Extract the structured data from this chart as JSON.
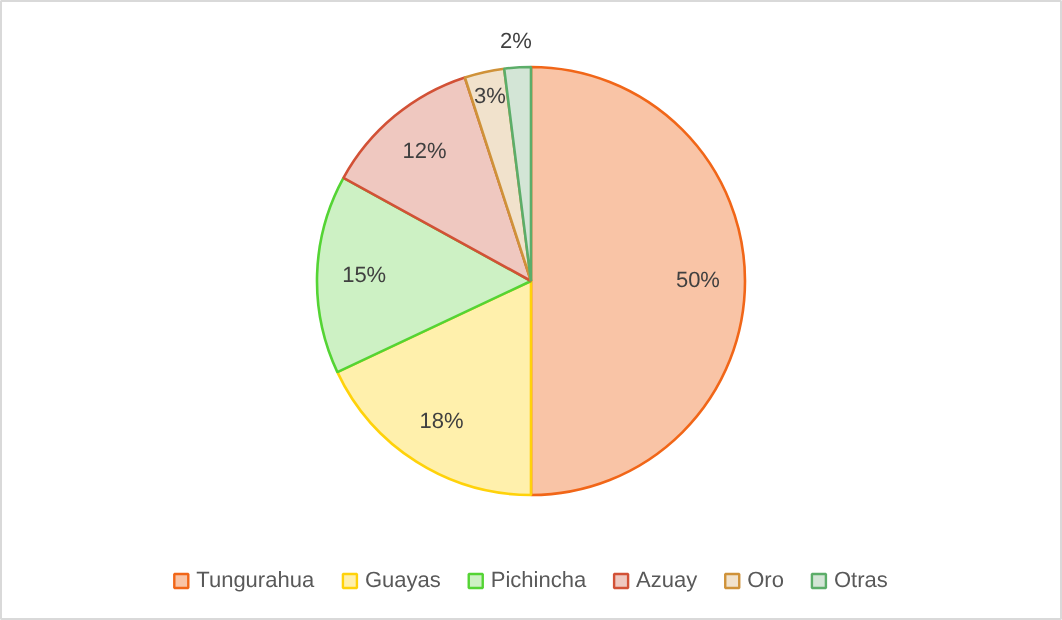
{
  "chart_data": {
    "type": "pie",
    "categories": [
      "Tungurahua",
      "Guayas",
      "Pichincha",
      "Azuay",
      "Oro",
      "Otras"
    ],
    "values": [
      50,
      18,
      15,
      12,
      3,
      2
    ],
    "value_labels": [
      "50%",
      "18%",
      "15%",
      "12%",
      "3%",
      "2%"
    ],
    "colors": [
      "#f9c4a6",
      "#fff0ac",
      "#cdf1c4",
      "#efc8c0",
      "#f1e2cc",
      "#d3e5d6"
    ],
    "legend": "bottom"
  }
}
